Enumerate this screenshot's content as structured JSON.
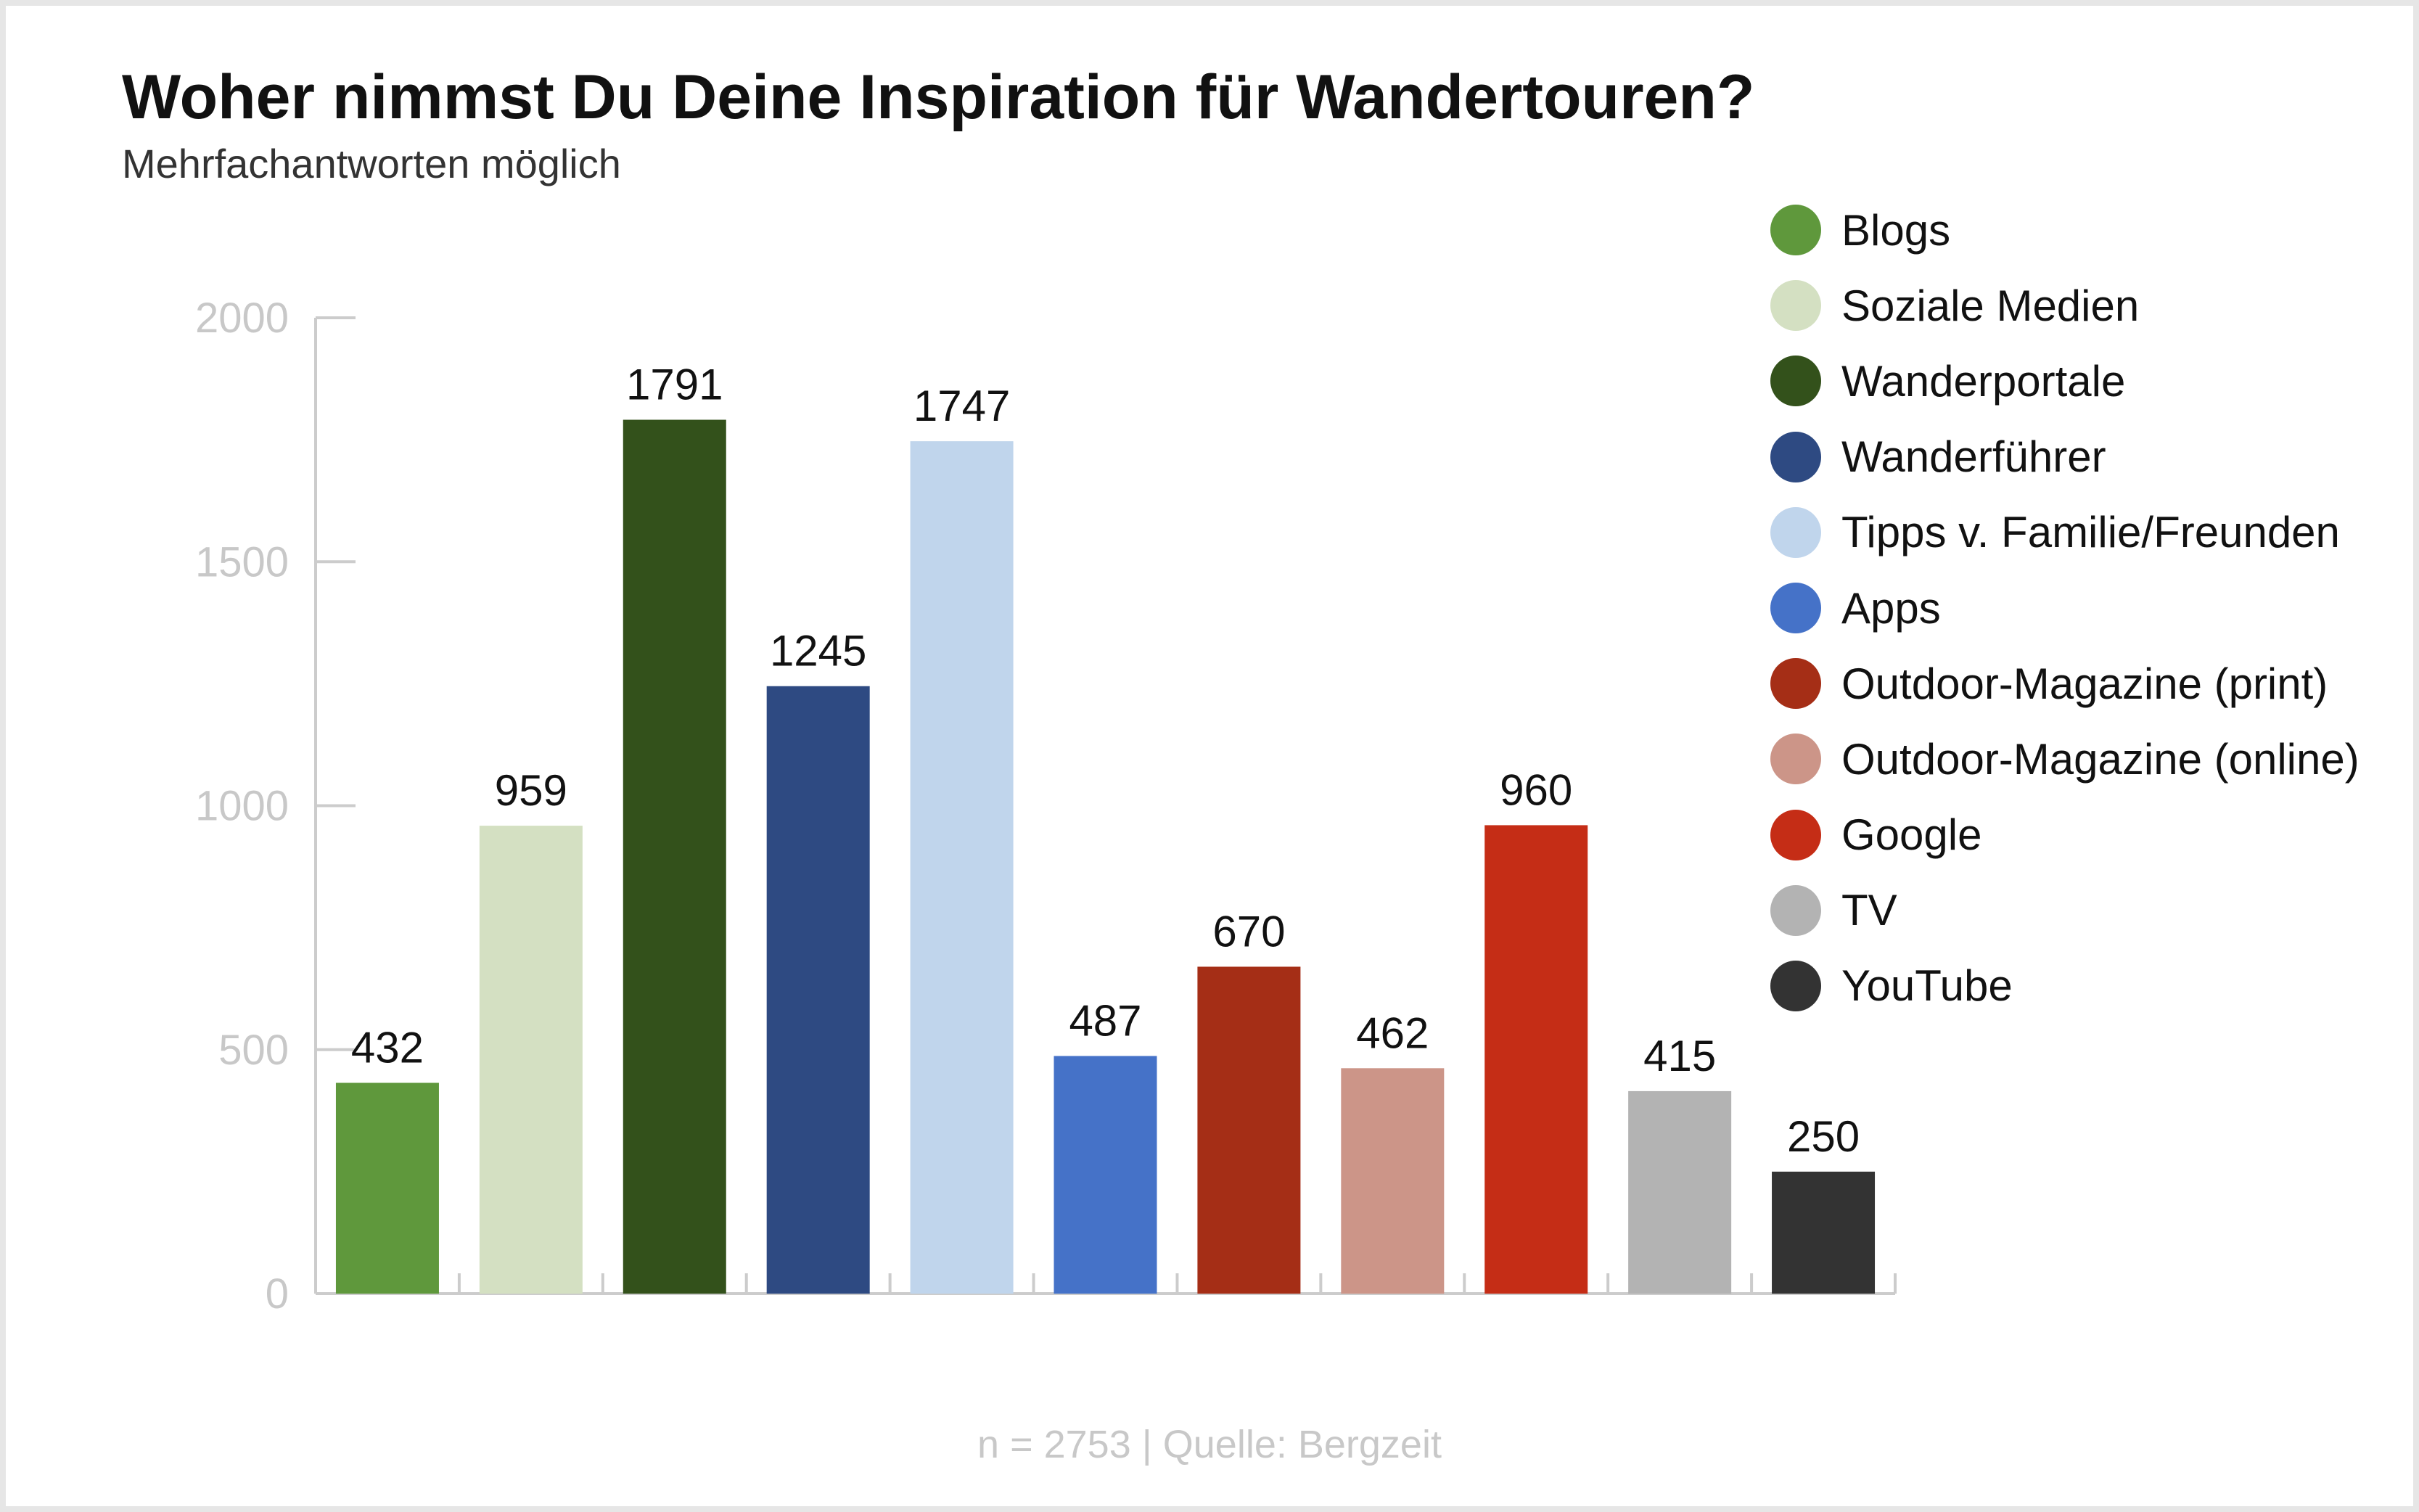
{
  "chart_data": {
    "type": "bar",
    "title": "Woher nimmst Du Deine Inspiration für Wandertouren?",
    "subtitle": "Mehrfachantworten möglich",
    "categories": [
      "Blogs",
      "Soziale Medien",
      "Wanderportale",
      "Wanderführer",
      "Tipps v. Familie/Freunden",
      "Apps",
      "Outdoor-Magazine (print)",
      "Outdoor-Magazine (online)",
      "Google",
      "TV",
      "YouTube"
    ],
    "values": [
      432,
      959,
      1791,
      1245,
      1747,
      487,
      670,
      462,
      960,
      415,
      250
    ],
    "value_labels": [
      "432",
      "959",
      "1791",
      "1245",
      "1747",
      "487",
      "670",
      "462",
      "960",
      "415",
      "250"
    ],
    "colors": [
      "#5f983c",
      "#d4e0c2",
      "#33511b",
      "#2e4a82",
      "#c0d5ec",
      "#4572c8",
      "#a52e16",
      "#cc9588",
      "#c52d16",
      "#b3b3b3",
      "#333333"
    ],
    "ylim": [
      0,
      2000
    ],
    "yticks": [
      "0",
      "500",
      "1000",
      "1500",
      "2000"
    ],
    "legend_position": "right",
    "grid": false,
    "footer": "n = 2753 | Quelle: Bergzeit"
  }
}
